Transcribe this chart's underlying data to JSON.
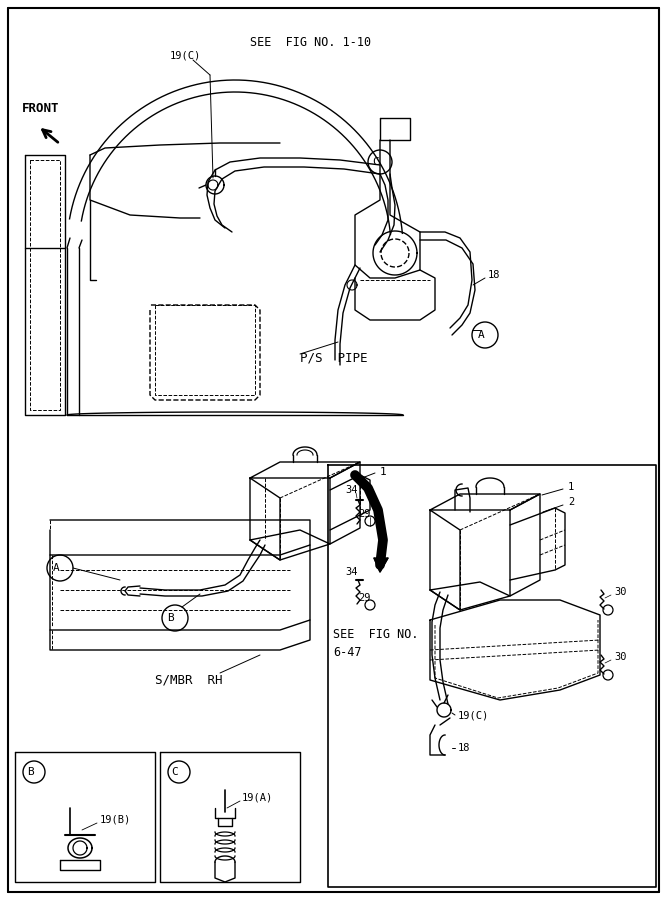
{
  "bg_color": "#ffffff",
  "line_color": "#000000",
  "fig_width": 6.67,
  "fig_height": 9.0,
  "labels": {
    "front": "FRONT",
    "see_fig_110": "SEE  FIG NO. 1-10",
    "ps_pipe": "P/S  PIPE",
    "s_mbr_rh": "S/MBR  RH",
    "see_fig_647_1": "SEE  FIG NO.",
    "see_fig_647_2": "6-47",
    "label_19c_top": "19(C)",
    "label_18": "18",
    "label_1_mid": "1",
    "label_1_box": "1",
    "label_2_box": "2",
    "label_29a": "29",
    "label_34a": "34",
    "label_29b": "29",
    "label_34b": "34",
    "label_30a": "30",
    "label_30b": "30",
    "label_19c_box": "19(C)",
    "label_18_box": "18",
    "label_19b": "19(B)",
    "label_19a": "19(A)"
  }
}
